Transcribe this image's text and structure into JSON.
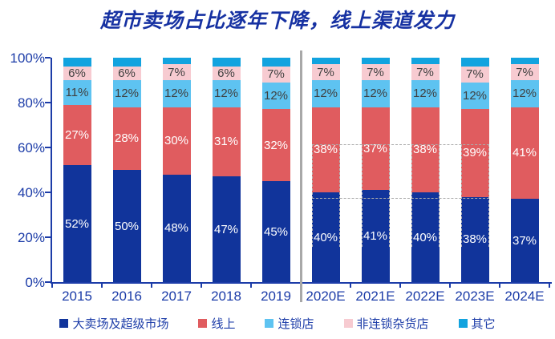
{
  "page": {
    "title": "超市卖场占比逐年下降，线上渠道发力"
  },
  "colors": {
    "title_text": "#1631A2",
    "axis_text": "#1C3CA8",
    "axis_line": "#1C3CA8",
    "divider": "#A8A8A8",
    "dash": "#ABABAB",
    "label_on_dark": "#FFFFFF",
    "label_on_light": "#3F3F3F"
  },
  "chart_data": {
    "type": "bar",
    "subtype": "stacked-percent",
    "title": "超市卖场占比逐年下降，线上渠道发力",
    "categories": [
      "2015",
      "2016",
      "2017",
      "2018",
      "2019",
      "2020E",
      "2021E",
      "2022E",
      "2023E",
      "2024E"
    ],
    "series": [
      {
        "name": "大卖场及超级市场",
        "color": "#11349B",
        "label_color": "#FFFFFF",
        "show_labels": true,
        "values": [
          52,
          50,
          48,
          47,
          45,
          40,
          41,
          40,
          38,
          37
        ]
      },
      {
        "name": "线上",
        "color": "#E05C5F",
        "label_color": "#FFFFFF",
        "show_labels": true,
        "values": [
          27,
          28,
          30,
          31,
          32,
          38,
          37,
          38,
          39,
          41
        ]
      },
      {
        "name": "连锁店",
        "color": "#5EC3F1",
        "label_color": "#3F3F3F",
        "show_labels": true,
        "values": [
          11,
          12,
          12,
          12,
          12,
          12,
          12,
          12,
          12,
          12
        ]
      },
      {
        "name": "非连锁杂货店",
        "color": "#F7CBD1",
        "label_color": "#3F3F3F",
        "show_labels": true,
        "values": [
          6,
          6,
          7,
          6,
          7,
          7,
          7,
          7,
          7,
          7
        ]
      },
      {
        "name": "其它",
        "color": "#12A3DF",
        "label_color": null,
        "show_labels": false,
        "values": [
          4,
          4,
          3,
          4,
          4,
          3,
          3,
          3,
          4,
          3
        ]
      }
    ],
    "value_suffix": "%",
    "y_ticks": [
      "100%",
      "80%",
      "60%",
      "40%",
      "20%",
      "0%"
    ],
    "ylim": [
      0,
      100
    ],
    "grid": false,
    "legend_position": "bottom",
    "divider_after_index": 4,
    "dashed_annotation": {
      "from_index": 5,
      "to_index": 8,
      "top_pct": 61.5,
      "mid_pct": 37.5,
      "bottom_pct": 15.7
    }
  }
}
